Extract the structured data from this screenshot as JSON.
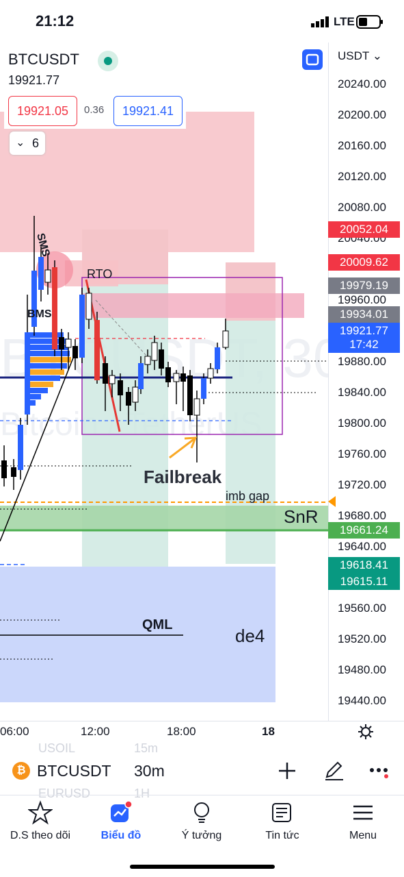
{
  "status_bar": {
    "time": "21:12",
    "network": "LTE"
  },
  "header": {
    "symbol": "BTCUSDT",
    "last_price": "19921.77",
    "sell_price": "19921.05",
    "spread": "0.36",
    "buy_price": "19921.41",
    "indicators_count": "6"
  },
  "axis": {
    "currency": "USDT",
    "labels": [
      "20240.00",
      "20200.00",
      "20160.00",
      "20120.00",
      "20080.00",
      "20040.00",
      "19960.00",
      "19880.00",
      "19840.00",
      "19800.00",
      "19760.00",
      "19720.00",
      "19680.00",
      "19640.00",
      "19560.00",
      "19520.00",
      "19480.00",
      "19440.00"
    ],
    "tags": [
      {
        "text": "20052.04",
        "color": "#f23645"
      },
      {
        "text": "20009.62",
        "color": "#f23645"
      },
      {
        "text": "19979.19",
        "color": "#787b86"
      },
      {
        "text": "19934.01",
        "color": "#787b86"
      },
      {
        "text": "19921.77",
        "color": "#2962ff"
      },
      {
        "text": "17:42",
        "color": "#2962ff"
      },
      {
        "text": "19661.24",
        "color": "#4caf50"
      },
      {
        "text": "19618.41",
        "color": "#089981"
      },
      {
        "text": "19615.11",
        "color": "#089981"
      }
    ]
  },
  "time_axis": {
    "labels": [
      "06:00",
      "12:00",
      "18:00",
      "18"
    ]
  },
  "annotations": {
    "rto": "RTO",
    "sms": "SMS",
    "bms": "BMS",
    "failbreak": "Failbreak",
    "imb_gap": "imb gap",
    "snr": "SnR",
    "qml": "QML",
    "de4": "de4"
  },
  "watermark": {
    "line1": "BTCUSDT, 30",
    "line2": "Bitcoin / TetherUS"
  },
  "bottom_bar": {
    "symbol": "BTCUSDT",
    "interval": "30m",
    "ghost1": "USOIL",
    "ghost1b": "15m",
    "ghost2": "EURUSD",
    "ghost2b": "1H"
  },
  "tabs": [
    {
      "label": "D.S theo dõi",
      "icon": "star-icon"
    },
    {
      "label": "Biểu đồ",
      "icon": "chart-icon"
    },
    {
      "label": "Ý tưởng",
      "icon": "lightbulb-icon"
    },
    {
      "label": "Tin tức",
      "icon": "news-icon"
    },
    {
      "label": "Menu",
      "icon": "menu-icon"
    }
  ],
  "colors": {
    "accent": "#2962ff",
    "up": "#2962ff",
    "down": "#f23645",
    "supply_zone": "#f7c1c7",
    "demand_zone": "#c5d3fb",
    "target_zone": "#cfe9e2"
  }
}
